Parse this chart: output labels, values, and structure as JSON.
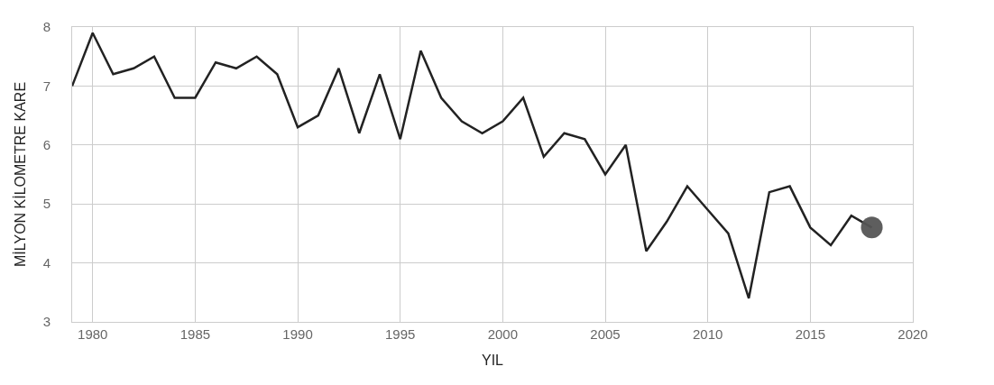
{
  "chart_data": {
    "type": "line",
    "xlabel": "YIL",
    "ylabel": "MİLYON KİLOMETRE KARE",
    "xlim": [
      1979,
      2020
    ],
    "xticks": [
      1980,
      1985,
      1990,
      1995,
      2000,
      2005,
      2010,
      2015,
      2020
    ],
    "ylim": [
      3,
      8
    ],
    "yticks": [
      3,
      4,
      5,
      6,
      7,
      8
    ],
    "grid": true,
    "marker": "none",
    "series": [
      {
        "color": "#222222",
        "x": [
          1979,
          1980,
          1981,
          1982,
          1983,
          1984,
          1985,
          1986,
          1987,
          1988,
          1989,
          1990,
          1991,
          1992,
          1993,
          1994,
          1995,
          1996,
          1997,
          1998,
          1999,
          2000,
          2001,
          2002,
          2003,
          2004,
          2005,
          2006,
          2007,
          2008,
          2009,
          2010,
          2011,
          2012,
          2013,
          2014,
          2015,
          2016,
          2017,
          2018
        ],
        "values": [
          7.0,
          7.9,
          7.2,
          7.3,
          7.5,
          6.8,
          6.8,
          7.4,
          7.3,
          7.5,
          7.2,
          6.3,
          6.5,
          7.3,
          6.2,
          7.2,
          6.1,
          7.6,
          6.8,
          6.4,
          6.2,
          6.4,
          6.8,
          5.8,
          6.2,
          6.1,
          5.5,
          6.0,
          4.2,
          4.7,
          5.3,
          4.9,
          4.5,
          3.4,
          5.2,
          5.3,
          4.6,
          4.3,
          4.8,
          4.6
        ]
      },
      {
        "type": "scatter",
        "marker": "circle",
        "color": "#555555",
        "x": [
          2018
        ],
        "values": [
          4.6
        ]
      }
    ]
  }
}
